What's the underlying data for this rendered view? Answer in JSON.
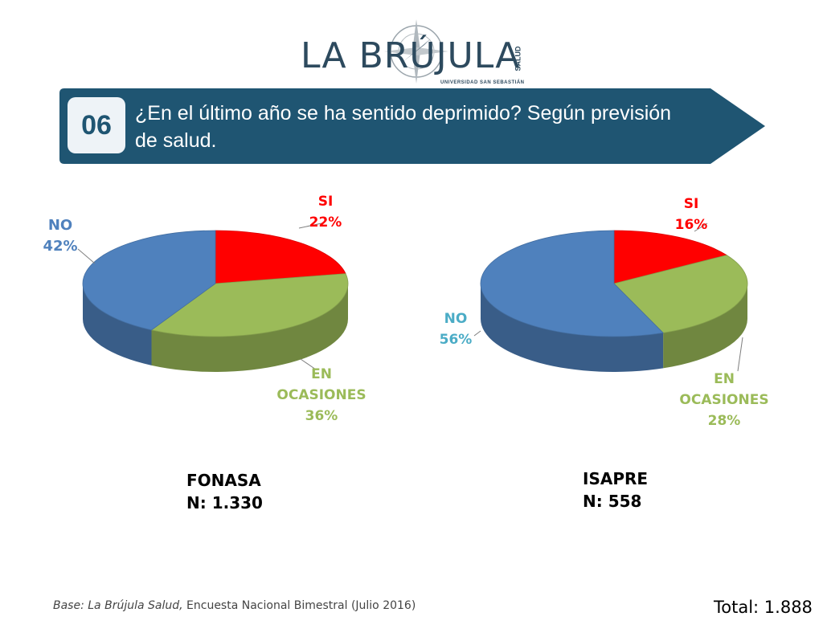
{
  "logo": {
    "name": "LA BRÚJULA",
    "subtitle": "UNIVERSIDAD SAN SEBASTIÁN",
    "side_text": "SALUD"
  },
  "header": {
    "number": "06",
    "question": "¿En el último año se ha sentido deprimido? Según previsión de salud.",
    "banner_color": "#1f5572"
  },
  "chart_data": [
    {
      "type": "pie",
      "title": "FONASA",
      "sample": "N: 1.330",
      "slices": [
        {
          "name": "SI",
          "value": 22,
          "label": "22%",
          "color": "#ff0000"
        },
        {
          "name": "EN OCASIONES",
          "value": 36,
          "label": "36%",
          "color": "#9bbb59"
        },
        {
          "name": "NO",
          "value": 42,
          "label": "42%",
          "color": "#4f81bd"
        }
      ]
    },
    {
      "type": "pie",
      "title": "ISAPRE",
      "sample": "N: 558",
      "slices": [
        {
          "name": "SI",
          "value": 16,
          "label": "16%",
          "color": "#ff0000"
        },
        {
          "name": "EN OCASIONES",
          "value": 28,
          "label": "28%",
          "color": "#9bbb59"
        },
        {
          "name": "NO",
          "value": 56,
          "label": "56%",
          "color": "#4f81bd"
        }
      ]
    }
  ],
  "labels": {
    "fonasa": {
      "si_name": "SI",
      "si_pct": "22%",
      "no_name": "NO",
      "no_pct": "42%",
      "en_line1": "EN",
      "en_line2": "OCASIONES",
      "en_pct": "36%"
    },
    "isapre": {
      "si_name": "SI",
      "si_pct": "16%",
      "no_name": "NO",
      "no_pct": "56%",
      "en_line1": "EN",
      "en_line2": "OCASIONES",
      "en_pct": "28%"
    }
  },
  "footer": {
    "base_italic": "Base: La Brújula Salud,",
    "base_rest": " Encuesta Nacional Bimestral (Julio 2016)",
    "total": "Total: 1.888"
  }
}
